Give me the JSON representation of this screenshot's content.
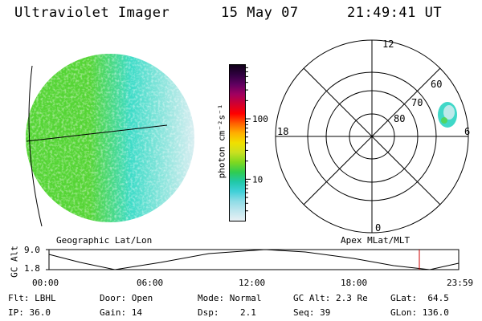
{
  "header": {
    "instrument": "Ultraviolet Imager",
    "date": "15 May 07",
    "time": "21:49:41 UT"
  },
  "colorbar": {
    "label": "photon cm⁻²s⁻¹",
    "ticks": [
      "100",
      "10"
    ],
    "tick_values": [
      100,
      10
    ],
    "range": [
      2,
      800
    ],
    "colors": [
      "#e8f0f4",
      "#bfe6ee",
      "#8fdce6",
      "#40d0d8",
      "#20c8a8",
      "#30cc50",
      "#7ed820",
      "#c8e020",
      "#f0e000",
      "#ffb000",
      "#ff6000",
      "#ff0000",
      "#d00030",
      "#a00060",
      "#600060",
      "#300040",
      "#100018"
    ]
  },
  "globe": {
    "caption": "Geographic Lat/Lon",
    "colors": {
      "green": "#55d535",
      "cyan": "#3edcc8",
      "white": "#ddeef2",
      "grid": "#000000"
    }
  },
  "polar": {
    "caption": "Apex MLat/MLT",
    "mlt_labels": {
      "top": "12",
      "left": "18",
      "right": "6",
      "bottom": "0"
    },
    "lat_labels": [
      "60",
      "70",
      "80"
    ]
  },
  "timeline": {
    "ylabel": "GC Alt",
    "yticks": [
      "9.0",
      "1.8"
    ],
    "xticks": [
      "00:00",
      "06:00",
      "12:00",
      "18:00",
      "23:59"
    ],
    "marker_color": "#cc0000"
  },
  "info": {
    "row1": [
      {
        "label": "Flt:",
        "value": "LBHL"
      },
      {
        "label": "Door:",
        "value": "Open"
      },
      {
        "label": "Mode:",
        "value": "Normal"
      },
      {
        "label": "GC Alt:",
        "value": "2.3 Re"
      },
      {
        "label": "GLat:",
        "value": "64.5"
      }
    ],
    "row2": [
      {
        "label": "IP:",
        "value": "36.0"
      },
      {
        "label": "Gain:",
        "value": "14"
      },
      {
        "label": "Dsp:",
        "value": "2.1"
      },
      {
        "label": "Seq:",
        "value": "39"
      },
      {
        "label": "GLon:",
        "value": "136.0"
      }
    ]
  }
}
